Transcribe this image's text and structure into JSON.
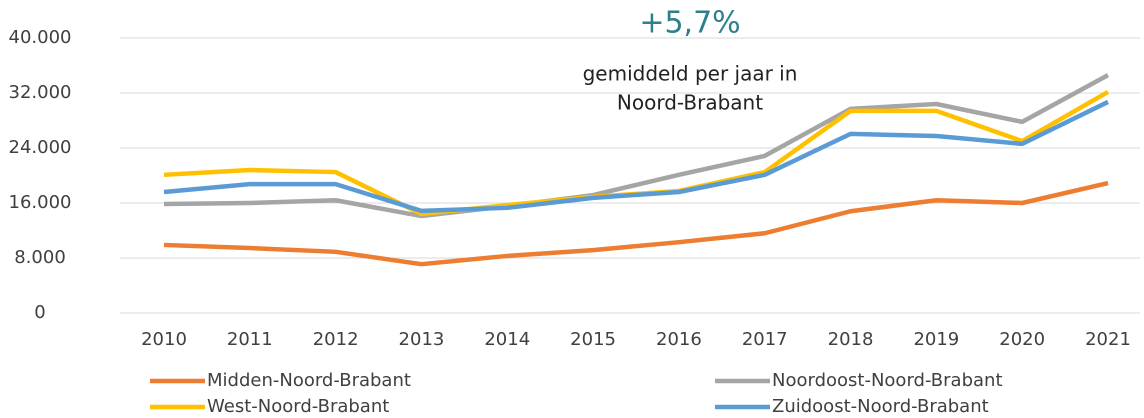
{
  "chart_data": {
    "type": "line",
    "annotation": {
      "headline": "+5,7%",
      "lines": [
        "gemiddeld per jaar in",
        "Noord-Brabant"
      ]
    },
    "categories": [
      "2010",
      "2011",
      "2012",
      "2013",
      "2014",
      "2015",
      "2016",
      "2017",
      "2018",
      "2019",
      "2020",
      "2021"
    ],
    "series": [
      {
        "name": "Midden-Noord-Brabant",
        "color": "#ED7D31",
        "values": [
          9900,
          9450,
          8900,
          7100,
          8300,
          9150,
          10300,
          11600,
          14800,
          16400,
          16000,
          18900
        ]
      },
      {
        "name": "Noordoost-Noord-Brabant",
        "color": "#A5A5A5",
        "values": [
          15850,
          16000,
          16400,
          14100,
          15550,
          17150,
          20100,
          22850,
          29700,
          30400,
          27800,
          34600
        ]
      },
      {
        "name": "West-Noord-Brabant",
        "color": "#FFC000",
        "values": [
          20100,
          20800,
          20500,
          14400,
          15700,
          16900,
          17750,
          20500,
          29400,
          29400,
          25000,
          32150
        ]
      },
      {
        "name": "Zuidoost-Noord-Brabant",
        "color": "#5B9BD5",
        "values": [
          17600,
          18750,
          18750,
          14850,
          15300,
          16750,
          17600,
          20100,
          26050,
          25750,
          24600,
          30700
        ]
      }
    ],
    "ylim": [
      0,
      40000
    ],
    "yticks": [
      0,
      {
        "value": 8000,
        "label": "8.000"
      },
      {
        "value": 16000,
        "label": "16.000"
      },
      {
        "value": 24000,
        "label": "24.000"
      },
      {
        "value": 32000,
        "label": "32.000"
      },
      {
        "value": 40000,
        "label": "40.000"
      }
    ],
    "grid": true,
    "legend": "bottom"
  }
}
